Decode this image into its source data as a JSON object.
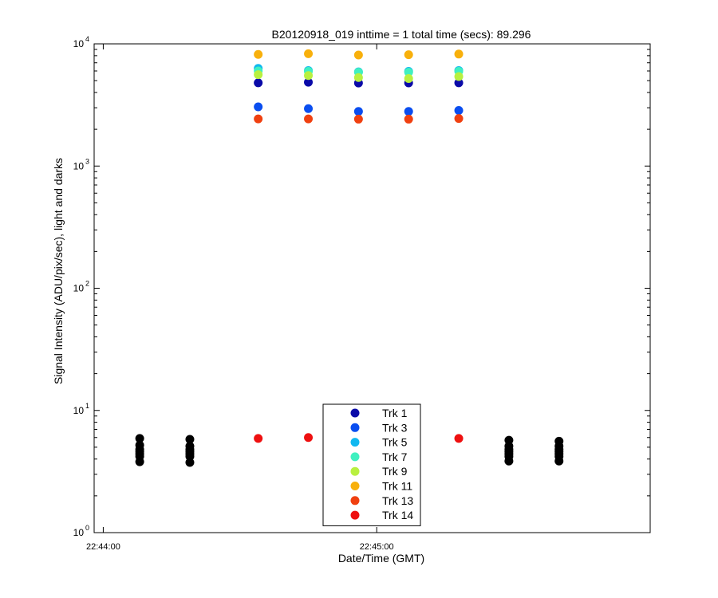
{
  "chart_data": {
    "type": "scatter",
    "title": "B20120918_019 inttime = 1 total time (secs): 89.296",
    "xlabel": "Date/Time (GMT)",
    "ylabel": "Signal Intensity (ADU/pix/sec), light and darks",
    "yscale": "log",
    "ylim": [
      1,
      10000
    ],
    "xlim": [
      "22:43:58",
      "22:46:00"
    ],
    "x_ticks": [
      "22:44:00",
      "22:45:00"
    ],
    "y_ticks": [
      {
        "base": "10",
        "exp": "0",
        "value": 1
      },
      {
        "base": "10",
        "exp": "1",
        "value": 10
      },
      {
        "base": "10",
        "exp": "2",
        "value": 100
      },
      {
        "base": "10",
        "exp": "3",
        "value": 1000
      },
      {
        "base": "10",
        "exp": "4",
        "value": 10000
      }
    ],
    "grid": false,
    "legend_position": "bottom-center",
    "series": [
      {
        "name": "Trk 1",
        "color": "#0a0aa8",
        "x": [
          "22:44:34",
          "22:44:45",
          "22:44:56",
          "22:45:07",
          "22:45:18"
        ],
        "y": [
          4800,
          4850,
          4780,
          4790,
          4800
        ]
      },
      {
        "name": "Trk 3",
        "color": "#0a4ef0",
        "x": [
          "22:44:34",
          "22:44:45",
          "22:44:56",
          "22:45:07",
          "22:45:18"
        ],
        "y": [
          3050,
          2950,
          2800,
          2800,
          2850
        ]
      },
      {
        "name": "Trk 5",
        "color": "#10b8f0",
        "x": [
          "22:44:34",
          "22:44:45",
          "22:44:56",
          "22:45:07",
          "22:45:18"
        ],
        "y": [
          6300,
          6050,
          5900,
          5950,
          6050
        ]
      },
      {
        "name": "Trk 7",
        "color": "#40f0c0",
        "x": [
          "22:44:34",
          "22:44:45",
          "22:44:56",
          "22:45:07",
          "22:45:18"
        ],
        "y": [
          6000,
          5950,
          5850,
          5850,
          5950
        ]
      },
      {
        "name": "Trk 9",
        "color": "#b8f040",
        "x": [
          "22:44:34",
          "22:44:45",
          "22:44:56",
          "22:45:07",
          "22:45:18"
        ],
        "y": [
          5600,
          5500,
          5300,
          5200,
          5400
        ]
      },
      {
        "name": "Trk 11",
        "color": "#f8b00c",
        "x": [
          "22:44:34",
          "22:44:45",
          "22:44:56",
          "22:45:07",
          "22:45:18"
        ],
        "y": [
          8200,
          8300,
          8100,
          8150,
          8250
        ]
      },
      {
        "name": "Trk 13",
        "color": "#f04010",
        "x": [
          "22:44:34",
          "22:44:45",
          "22:44:56",
          "22:45:07",
          "22:45:18"
        ],
        "y": [
          2430,
          2430,
          2420,
          2420,
          2450
        ]
      },
      {
        "name": "Trk 14",
        "color": "#ee1010",
        "x": [
          "22:44:34",
          "22:44:45",
          "22:44:56",
          "22:45:07",
          "22:45:18"
        ],
        "y": [
          5.9,
          6.0,
          5.9,
          5.9,
          5.9
        ]
      }
    ],
    "darks": {
      "color": "#000000",
      "x": [
        "22:44:08",
        "22:44:08",
        "22:44:08",
        "22:44:08",
        "22:44:08",
        "22:44:08",
        "22:44:08",
        "22:44:19",
        "22:44:19",
        "22:44:19",
        "22:44:19",
        "22:44:19",
        "22:44:19",
        "22:44:19",
        "22:45:29",
        "22:45:29",
        "22:45:29",
        "22:45:29",
        "22:45:29",
        "22:45:29",
        "22:45:29",
        "22:45:40",
        "22:45:40",
        "22:45:40",
        "22:45:40",
        "22:45:40",
        "22:45:40",
        "22:45:40"
      ],
      "y": [
        5.9,
        5.2,
        4.8,
        4.6,
        4.4,
        4.2,
        3.8,
        5.8,
        5.1,
        4.8,
        4.6,
        4.4,
        4.2,
        3.75,
        5.7,
        5.1,
        4.8,
        4.6,
        4.4,
        4.2,
        3.85,
        5.6,
        5.1,
        4.8,
        4.6,
        4.4,
        4.2,
        3.85
      ]
    }
  }
}
